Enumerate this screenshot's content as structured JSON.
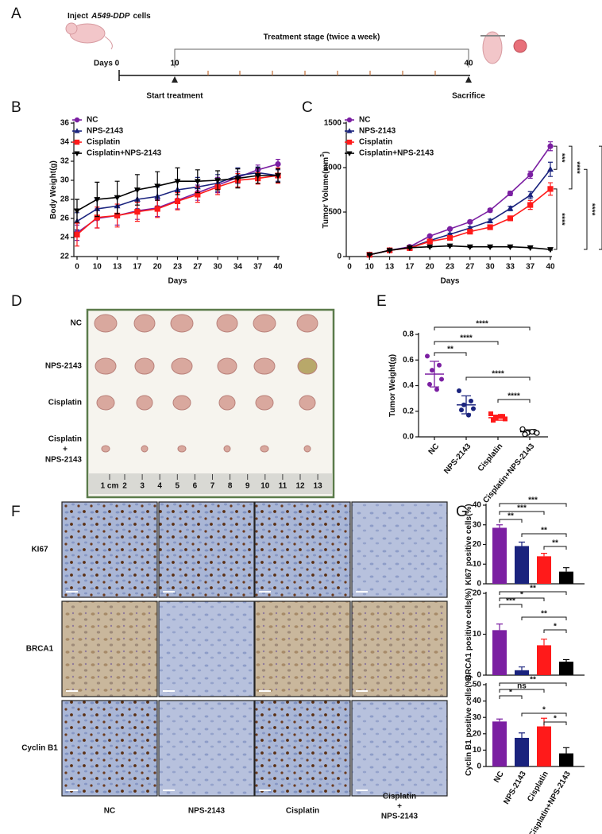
{
  "panel_labels": [
    "A",
    "B",
    "C",
    "D",
    "E",
    "F",
    "G"
  ],
  "timeline": {
    "inject_prefix": "Inject",
    "cell_line": "A549-DDP",
    "inject_suffix": "cells",
    "stage": "Treatment stage (twice a week)",
    "days_label": "Days 0",
    "start_day": "10",
    "end_day": "40",
    "start": "Start treatment",
    "end": "Sacrifice"
  },
  "chart_data": [
    {
      "type": "line",
      "xlabel": "Days",
      "ylabel": "Body Weight(g)",
      "legend": "upper left",
      "categories": [
        0,
        10,
        13,
        17,
        20,
        23,
        27,
        30,
        34,
        37,
        40
      ],
      "series": [
        {
          "name": "NC",
          "color": "#7b1fa2",
          "marker": "circle",
          "values": [
            24.5,
            26.0,
            26.3,
            26.8,
            27.1,
            27.9,
            28.7,
            29.5,
            30.3,
            31.1,
            31.7
          ],
          "errors": [
            0.8,
            1,
            1,
            0.9,
            0.9,
            0.9,
            0.8,
            0.8,
            0.6,
            0.5,
            0.5
          ]
        },
        {
          "name": "NPS-2143",
          "color": "#1a237e",
          "marker": "triangle-up",
          "values": [
            25.7,
            27.0,
            27.3,
            28.0,
            28.3,
            29.0,
            29.3,
            29.7,
            30.5,
            30.8,
            30.5
          ],
          "errors": [
            0.9,
            1,
            1,
            1,
            1,
            1,
            1,
            0.9,
            0.8,
            0.6,
            0.6
          ]
        },
        {
          "name": "Cisplatin",
          "color": "#ff1a1a",
          "marker": "square",
          "values": [
            24.3,
            26.1,
            26.3,
            26.7,
            27.0,
            27.8,
            28.5,
            29.3,
            30.0,
            30.2,
            30.5
          ],
          "errors": [
            1.2,
            1.1,
            1.2,
            1,
            0.9,
            0.9,
            0.8,
            0.8,
            0.7,
            0.6,
            0.8
          ]
        },
        {
          "name": "Cisplatin+NPS-2143",
          "color": "#000000",
          "marker": "triangle-down",
          "values": [
            26.8,
            28.0,
            28.2,
            29.0,
            29.4,
            29.9,
            29.9,
            30.0,
            30.2,
            30.5,
            30.5
          ],
          "errors": [
            1.2,
            1.8,
            1.7,
            1.6,
            1.5,
            1.4,
            1.2,
            1.0,
            1.0,
            0.8,
            0.7
          ]
        }
      ],
      "ylim": [
        22,
        36
      ],
      "yticks": [
        22,
        24,
        26,
        28,
        30,
        32,
        34,
        36
      ]
    },
    {
      "type": "line",
      "xlabel": "Days",
      "ylabel": "Tumor Volume(mm",
      "ylabel_sup": "3",
      "ylabel_end": ")",
      "legend": "upper left",
      "categories": [
        0,
        10,
        13,
        17,
        20,
        23,
        27,
        30,
        33,
        37,
        40
      ],
      "series": [
        {
          "name": "NC",
          "color": "#7b1fa2",
          "marker": "circle",
          "values": [
            null,
            20,
            70,
            110,
            230,
            310,
            390,
            520,
            710,
            920,
            1240
          ],
          "errors": [
            null,
            3,
            5,
            8,
            10,
            12,
            15,
            20,
            25,
            40,
            50
          ]
        },
        {
          "name": "NPS-2143",
          "color": "#1a237e",
          "marker": "triangle-up",
          "values": [
            null,
            20,
            70,
            100,
            180,
            250,
            320,
            400,
            540,
            690,
            980
          ],
          "errors": [
            null,
            3,
            5,
            8,
            10,
            12,
            15,
            20,
            25,
            40,
            80
          ]
        },
        {
          "name": "Cisplatin",
          "color": "#ff1a1a",
          "marker": "square",
          "values": [
            null,
            20,
            70,
            95,
            170,
            210,
            280,
            330,
            430,
            580,
            760
          ],
          "errors": [
            null,
            3,
            5,
            8,
            10,
            12,
            15,
            20,
            25,
            50,
            70
          ]
        },
        {
          "name": "Cisplatin+NPS-2143",
          "color": "#000000",
          "marker": "triangle-down",
          "values": [
            null,
            20,
            70,
            100,
            110,
            120,
            110,
            110,
            110,
            100,
            80
          ],
          "errors": [
            null,
            3,
            5,
            8,
            8,
            8,
            8,
            8,
            8,
            8,
            8
          ]
        }
      ],
      "ylim": [
        0,
        1500
      ],
      "yticks": [
        0,
        500,
        1000,
        1500
      ],
      "significance": [
        "***",
        "****",
        "****",
        "****",
        "****"
      ]
    },
    {
      "type": "dot",
      "ylabel": "Tumor Weight(g)",
      "categories": [
        "NC",
        "NPS-2143",
        "Cisplatin",
        "Cisplatin+NPS-2143"
      ],
      "colors": [
        "#7b1fa2",
        "#1a237e",
        "#ff1a1a",
        "#000000"
      ],
      "markers": [
        "circle",
        "circle",
        "square",
        "circle-open"
      ],
      "values": [
        [
          0.63,
          0.56,
          0.52,
          0.45,
          0.41,
          0.37
        ],
        [
          0.36,
          0.28,
          0.25,
          0.22,
          0.21,
          0.17
        ],
        [
          0.18,
          0.16,
          0.15,
          0.14,
          0.13,
          0.16
        ],
        [
          0.06,
          0.04,
          0.03,
          0.03,
          0.02,
          0.04
        ]
      ],
      "means": [
        0.49,
        0.25,
        0.15,
        0.04
      ],
      "sds": [
        0.1,
        0.07,
        0.02,
        0.015
      ],
      "ylim": [
        0,
        0.8
      ],
      "yticks": [
        {
          "value": 0,
          "label": "0.0"
        },
        0.2,
        0.4,
        0.6,
        0.8
      ],
      "significance": [
        "****",
        "****",
        "**",
        "****",
        "****"
      ]
    },
    {
      "type": "bar",
      "ylabel": "KI67 positive cells(%)",
      "categories": [
        null,
        null,
        null,
        null
      ],
      "colors": [
        "#7b1fa2",
        "#1a237e",
        "#ff1a1a",
        "#000000"
      ],
      "values": [
        28.5,
        19.2,
        14,
        6.2
      ],
      "errors": [
        1.5,
        2,
        1.5,
        2
      ],
      "ylim": [
        0,
        40
      ],
      "yticks": [
        0,
        10,
        20,
        30,
        40
      ],
      "significance": [
        "***",
        "***",
        "**",
        "**",
        "**"
      ]
    },
    {
      "type": "bar",
      "ylabel": "BRCA1 positive cells(%)",
      "categories": [
        null,
        null,
        null,
        null
      ],
      "colors": [
        "#7b1fa2",
        "#1a237e",
        "#ff1a1a",
        "#000000"
      ],
      "values": [
        11,
        1.2,
        7.3,
        3.3
      ],
      "errors": [
        1.5,
        0.8,
        1.5,
        0.5
      ],
      "ylim": [
        0,
        20
      ],
      "yticks": [
        0,
        10,
        20
      ],
      "significance": [
        "**",
        "*",
        "***",
        "**",
        "*"
      ]
    },
    {
      "type": "bar",
      "ylabel": "Cyclin B1 positive cells(%)",
      "categories": [
        "NC",
        "NPS-2143",
        "Cisplatin",
        "Cisplatin+NPS-2143"
      ],
      "colors": [
        "#7b1fa2",
        "#1a237e",
        "#ff1a1a",
        "#000000"
      ],
      "values": [
        27.5,
        17.5,
        24.5,
        8
      ],
      "errors": [
        1.5,
        3,
        5,
        3.5
      ],
      "ylim": [
        0,
        50
      ],
      "yticks": [
        0,
        10,
        20,
        30,
        40,
        50
      ],
      "significance": [
        "**",
        "ns",
        "*",
        "*",
        "*"
      ]
    }
  ],
  "photo": {
    "rows": [
      "NC",
      "NPS-2143",
      "Cisplatin"
    ],
    "combo": [
      "Cisplatin",
      "+",
      "NPS-2143"
    ],
    "ruler": [
      "1 cm",
      "2",
      "3",
      "4",
      "5",
      "6",
      "7",
      "8",
      "9",
      "10",
      "11",
      "12",
      "13"
    ]
  },
  "ihc": {
    "rows": [
      "KI67",
      "BRCA1",
      "Cyclin B1"
    ],
    "columns": [
      "NC",
      "NPS-2143",
      "Cisplatin"
    ],
    "combo": [
      "Cisplatin",
      "+",
      "NPS-2143"
    ]
  }
}
